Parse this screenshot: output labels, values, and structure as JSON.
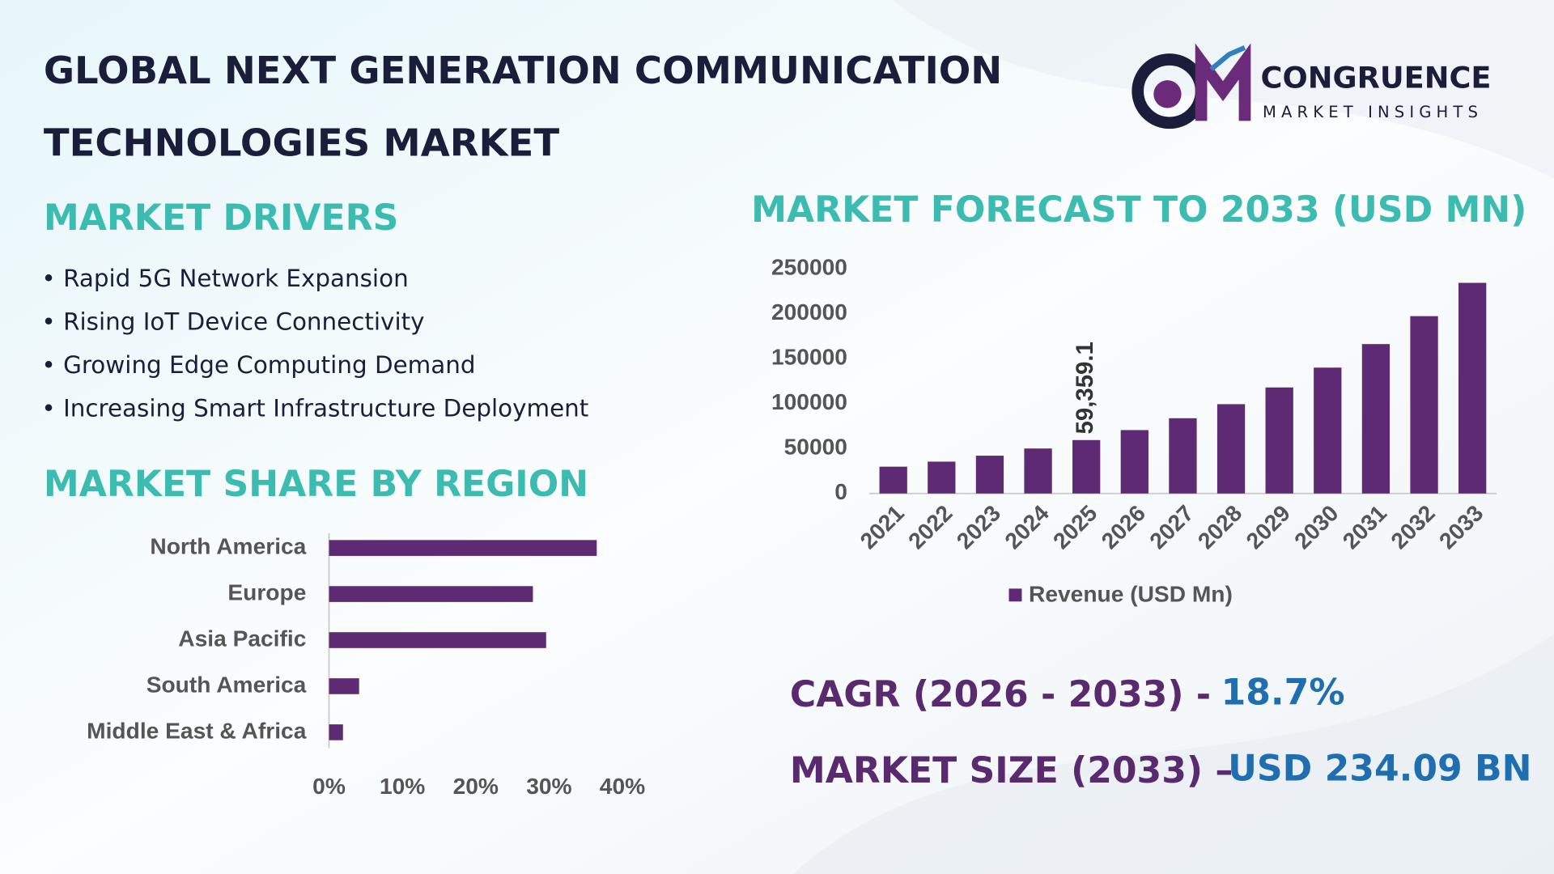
{
  "header": {
    "title_line1": "GLOBAL NEXT GENERATION COMMUNICATION",
    "title_line2": "TECHNOLOGIES MARKET"
  },
  "logo": {
    "name": "CONGRUENCE",
    "tagline": "MARKET INSIGHTS"
  },
  "drivers": {
    "title": "MARKET DRIVERS",
    "items": [
      "• Rapid 5G Network Expansion",
      "• Rising IoT Device Connectivity",
      "• Growing Edge Computing Demand",
      "• Increasing Smart Infrastructure Deployment"
    ]
  },
  "chart_data": [
    {
      "type": "hbar",
      "title": "MARKET SHARE BY REGION",
      "categories": [
        "North America",
        "Europe",
        "Asia Pacific",
        "South America",
        "Middle East & Africa"
      ],
      "values": [
        36.5,
        27.8,
        29.6,
        4.1,
        1.9
      ],
      "color": "#5e2a73",
      "xlim": [
        0,
        40
      ],
      "xticks": [
        {
          "value": 0,
          "label": "0%"
        },
        {
          "value": 10,
          "label": "10%"
        },
        {
          "value": 20,
          "label": "20%"
        },
        {
          "value": 30,
          "label": "30%"
        },
        {
          "value": 40,
          "label": "40%"
        }
      ],
      "grid": false
    },
    {
      "type": "bar",
      "title": "MARKET FORECAST TO 2033 (USD MN)",
      "categories": [
        "2021",
        "2022",
        "2023",
        "2024",
        "2025",
        "2026",
        "2027",
        "2028",
        "2029",
        "2030",
        "2031",
        "2032",
        "2033"
      ],
      "series": [
        {
          "name": "Revenue (USD Mn)",
          "color": "#5e2a73",
          "values": [
            29800,
            35400,
            42000,
            50000,
            59359.1,
            70459,
            83635,
            99275,
            117840,
            139876,
            166033,
            197081,
            234090
          ],
          "value_labels": [
            null,
            null,
            null,
            null,
            "59,359.1",
            null,
            null,
            null,
            null,
            null,
            null,
            null,
            null
          ]
        }
      ],
      "ylim": [
        0,
        250000
      ],
      "yticks": [
        0,
        50000,
        100000,
        150000,
        200000,
        250000
      ],
      "grid": false,
      "legend": "bottom"
    }
  ],
  "stats": {
    "cagr_label": "CAGR (2026 - 2033) -",
    "cagr_value": "18.7%",
    "size_label": "MARKET SIZE (2033) –",
    "size_value": "USD 234.09 BN"
  }
}
